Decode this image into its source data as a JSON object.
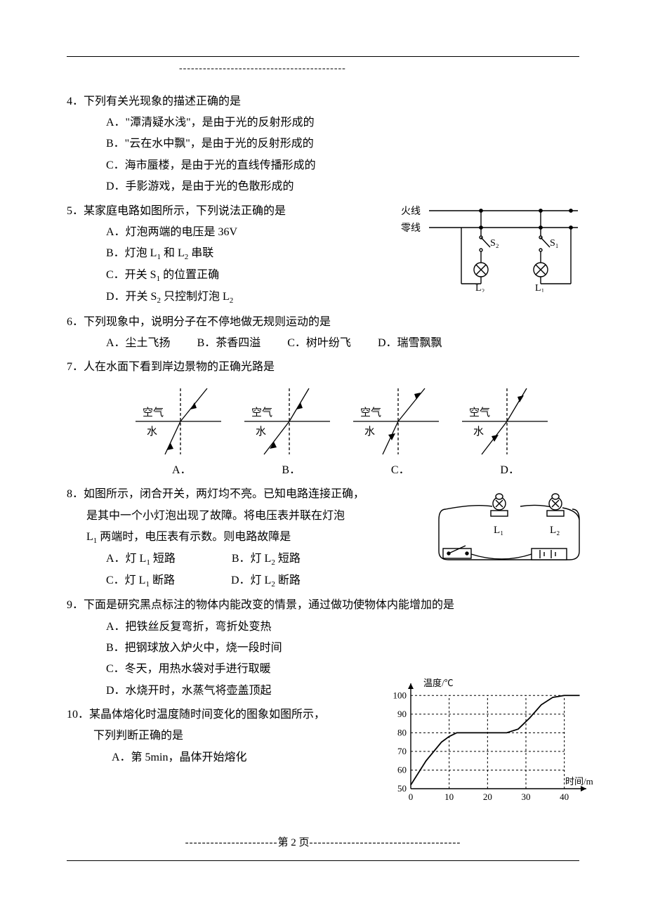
{
  "colors": {
    "ink": "#000000",
    "bg": "#ffffff",
    "grid": "#000000"
  },
  "dash_pattern": "------------------------------------------",
  "q4": {
    "num": "4．",
    "stem": "下列有关光现象的描述正确的是",
    "A": "A．\"潭清疑水浅\"，是由于光的反射形成的",
    "B": "B．\"云在水中飘\"，是由于光的反射形成的",
    "C": "C．海市蜃楼，是由于光的直线传播形成的",
    "D": "D．手影游戏，是由于光的色散形成的"
  },
  "q5": {
    "num": "5．",
    "stem": "某家庭电路如图所示，下列说法正确的是",
    "A": "A．灯泡两端的电压是 36V",
    "B_pre": "B．灯泡 L",
    "B_mid": " 和 L",
    "B_post": " 串联",
    "C_pre": "C．开关 S",
    "C_post": " 的位置正确",
    "D_pre": "D．开关 S",
    "D_mid": " 只控制灯泡 L",
    "fig": {
      "live_label": "火线",
      "neutral_label": "零线",
      "switch1": "S₁",
      "switch2": "S₂",
      "lamp1": "L₁",
      "lamp2": "L₂",
      "line_color": "#000000",
      "bg": "#ffffff",
      "stroke_width": 1.4
    }
  },
  "q6": {
    "num": "6．",
    "stem": "下列现象中，说明分子在不停地做无规则运动的是",
    "A": "A．尘土飞扬",
    "B": "B．茶香四溢",
    "C": "C．树叶纷飞",
    "D": "D．瑞雪飘飘"
  },
  "q7": {
    "num": "7．",
    "stem": "人在水面下看到岸边景物的正确光路是",
    "labels": {
      "air": "空气",
      "water": "水"
    },
    "options": {
      "A": "A．",
      "B": "B．",
      "C": "C．",
      "D": "D．"
    },
    "fig_style": {
      "stroke": "#000000",
      "stroke_width": 1.3,
      "dash": "4,3",
      "bg": "#ffffff"
    }
  },
  "q8": {
    "num": "8．",
    "stem1": "如图所示，闭合开关，两灯均不亮。已知电路连接正确，",
    "stem2": "是其中一个小灯泡出现了故障。将电压表并联在灯泡",
    "stem3_pre": "L",
    "stem3_post": " 两端时，电压表有示数。则电路故障是",
    "A_pre": "A．灯 L",
    "A_post": " 短路",
    "B_pre": "B．灯 L",
    "B_post": " 短路",
    "C_pre": "C．灯 L",
    "C_post": " 断路",
    "D_pre": "D．灯 L",
    "D_post": " 断路",
    "fig": {
      "L1": "L₁",
      "L2": "L₂",
      "stroke": "#000000",
      "bg": "#ffffff"
    }
  },
  "q9": {
    "num": "9．",
    "stem": "下面是研究黑点标注的物体内能改变的情景，通过做功使物体内能增加的是",
    "A": "A．把铁丝反复弯折，弯折处变热",
    "B": "B．把钢球放入炉火中，烧一段时间",
    "C": "C．冬天，用热水袋对手进行取暖",
    "D": "D．水烧开时，水蒸气将壶盖顶起"
  },
  "q10": {
    "num": "10．",
    "stem1": "某晶体熔化时温度随时间变化的图象如图所示，",
    "stem2": "下列判断正确的是",
    "A": "A．第 5min，晶体开始熔化",
    "chart": {
      "type": "line",
      "xlabel": "时间/min",
      "ylabel": "温度/℃",
      "xlim": [
        0,
        45
      ],
      "ylim": [
        50,
        105
      ],
      "xticks": [
        0,
        10,
        20,
        30,
        40
      ],
      "yticks": [
        50,
        60,
        70,
        80,
        90,
        100
      ],
      "grid_dash": "3,3",
      "grid_color": "#000000",
      "axis_color": "#000000",
      "line_color": "#000000",
      "line_width": 1.8,
      "points": [
        [
          0,
          52
        ],
        [
          4,
          65
        ],
        [
          8,
          75
        ],
        [
          10,
          78
        ],
        [
          12,
          80
        ],
        [
          15,
          80
        ],
        [
          20,
          80
        ],
        [
          25,
          80
        ],
        [
          28,
          82
        ],
        [
          31,
          88
        ],
        [
          34,
          95
        ],
        [
          37,
          99
        ],
        [
          40,
          100
        ],
        [
          44,
          100
        ]
      ],
      "bg": "#ffffff",
      "font_size": 13
    }
  },
  "footer": {
    "label": "第 2 页"
  }
}
